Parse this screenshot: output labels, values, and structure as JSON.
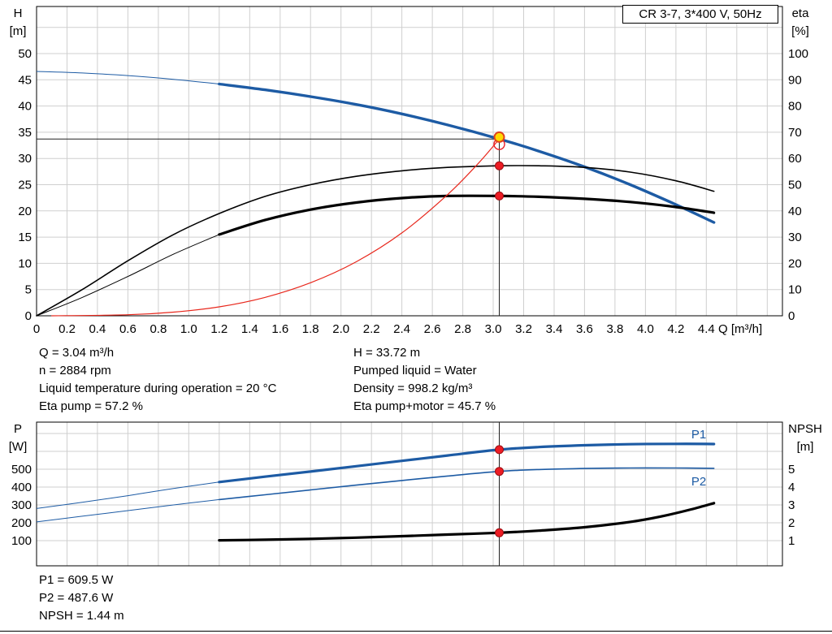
{
  "title_box": {
    "label": "CR 3-7, 3*400 V, 50Hz"
  },
  "axes": {
    "h_title": "H",
    "h_unit": "[m]",
    "eta_title": "eta",
    "eta_unit": "[%]",
    "q_title": "Q [m³/h]",
    "p_title": "P",
    "p_unit": "[W]",
    "npsh_title": "NPSH",
    "npsh_unit": "[m]"
  },
  "info_top": {
    "left": [
      "Q = 3.04 m³/h",
      "n = 2884 rpm",
      "Liquid temperature during operation = 20 °C",
      "Eta pump = 57.2 %"
    ],
    "right": [
      "H = 33.72 m",
      "Pumped liquid = Water",
      "Density = 998.2 kg/m³",
      "Eta pump+motor = 45.7 %"
    ]
  },
  "info_bottom": [
    "P1 = 609.5 W",
    "P2 = 487.6 W",
    "NPSH = 1.44 m"
  ],
  "chart_data": [
    {
      "type": "line",
      "title": "CR 3-7, 3*400 V, 50Hz",
      "xlabel": "Q [m³/h]",
      "ylabel_left": "H [m]",
      "ylabel_right": "eta [%]",
      "xlim": [
        0,
        4.9
      ],
      "ylim_left": [
        0,
        59
      ],
      "ylim_right": [
        0,
        118
      ],
      "grid": true,
      "x_ticks": [
        "0",
        "0.2",
        "0.4",
        "0.6",
        "0.8",
        "1.0",
        "1.2",
        "1.4",
        "1.6",
        "1.8",
        "2.0",
        "2.2",
        "2.4",
        "2.6",
        "2.8",
        "3.0",
        "3.2",
        "3.4",
        "3.6",
        "3.8",
        "4.0",
        "4.2",
        "4.4"
      ],
      "y_ticks_left": [
        "0",
        "5",
        "10",
        "15",
        "20",
        "25",
        "30",
        "35",
        "40",
        "45",
        "50"
      ],
      "y_ticks_right": [
        "0",
        "10",
        "20",
        "30",
        "40",
        "50",
        "60",
        "70",
        "80",
        "90",
        "100"
      ],
      "series": [
        {
          "name": "pump-head",
          "axis": "left",
          "color": "#1d5ba4",
          "width": 3.4,
          "thin_until": 1.2,
          "points": [
            [
              0,
              46.6
            ],
            [
              0.3,
              46.3
            ],
            [
              0.6,
              45.8
            ],
            [
              0.9,
              45.1
            ],
            [
              1.2,
              44.2
            ],
            [
              1.5,
              43.1
            ],
            [
              1.8,
              41.8
            ],
            [
              2.1,
              40.3
            ],
            [
              2.4,
              38.5
            ],
            [
              2.7,
              36.4
            ],
            [
              3.04,
              33.72
            ],
            [
              3.3,
              31.4
            ],
            [
              3.6,
              28.4
            ],
            [
              3.9,
              25.0
            ],
            [
              4.2,
              21.2
            ],
            [
              4.45,
              17.8
            ]
          ]
        },
        {
          "name": "eta-pump",
          "axis": "right",
          "color": "#000000",
          "width": 1.6,
          "points": [
            [
              0,
              0
            ],
            [
              0.3,
              10
            ],
            [
              0.6,
              21
            ],
            [
              0.9,
              31
            ],
            [
              1.2,
              39
            ],
            [
              1.5,
              45.5
            ],
            [
              1.8,
              50
            ],
            [
              2.1,
              53.2
            ],
            [
              2.4,
              55.3
            ],
            [
              2.7,
              56.6
            ],
            [
              3.04,
              57.2
            ],
            [
              3.3,
              57.2
            ],
            [
              3.6,
              56.6
            ],
            [
              3.9,
              54.8
            ],
            [
              4.2,
              51.5
            ],
            [
              4.45,
              47.5
            ]
          ]
        },
        {
          "name": "eta-pump-motor",
          "axis": "right",
          "color": "#000000",
          "width": 3.2,
          "thin_until": 1.2,
          "points": [
            [
              0,
              0
            ],
            [
              0.3,
              7
            ],
            [
              0.6,
              15
            ],
            [
              0.9,
              23.5
            ],
            [
              1.2,
              31
            ],
            [
              1.5,
              36.5
            ],
            [
              1.8,
              40.5
            ],
            [
              2.1,
              43.2
            ],
            [
              2.4,
              44.9
            ],
            [
              2.7,
              45.7
            ],
            [
              3.04,
              45.7
            ],
            [
              3.3,
              45.4
            ],
            [
              3.6,
              44.6
            ],
            [
              3.9,
              43.4
            ],
            [
              4.2,
              41.5
            ],
            [
              4.45,
              39.3
            ]
          ]
        },
        {
          "name": "system-curve",
          "axis": "left",
          "color": "#e8271c",
          "width": 1.2,
          "points": [
            [
              0.1,
              0
            ],
            [
              0.6,
              0.2
            ],
            [
              0.9,
              0.7
            ],
            [
              1.2,
              1.7
            ],
            [
              1.5,
              3.5
            ],
            [
              1.8,
              6.3
            ],
            [
              2.1,
              10.3
            ],
            [
              2.4,
              15.8
            ],
            [
              2.7,
              23.1
            ],
            [
              2.9,
              29.0
            ],
            [
              3.04,
              33.72
            ]
          ]
        }
      ],
      "duty_point": {
        "q": 3.04,
        "h": 33.72,
        "eta_pump": 57.2,
        "eta_pump_motor": 45.7
      }
    },
    {
      "type": "line",
      "xlabel": "Q [m³/h]",
      "ylabel_left": "P [W]",
      "ylabel_right": "NPSH [m]",
      "xlim": [
        0,
        4.9
      ],
      "ylim_left": [
        0,
        760
      ],
      "ylim_right": [
        0,
        7.6
      ],
      "grid": true,
      "y_ticks_left": [
        "100",
        "200",
        "300",
        "400",
        "500"
      ],
      "y_ticks_right": [
        "1",
        "2",
        "3",
        "4",
        "5"
      ],
      "series_labels": [
        "P1",
        "P2"
      ],
      "series": [
        {
          "name": "P1",
          "axis": "left",
          "color": "#1d5ba4",
          "width": 3.2,
          "thin_until": 1.2,
          "points": [
            [
              0,
              280
            ],
            [
              0.3,
              315
            ],
            [
              0.6,
              352
            ],
            [
              0.9,
              392
            ],
            [
              1.2,
              428
            ],
            [
              1.5,
              458
            ],
            [
              1.8,
              487
            ],
            [
              2.1,
              517
            ],
            [
              2.4,
              547
            ],
            [
              2.7,
              577
            ],
            [
              3.04,
              609.5
            ],
            [
              3.3,
              624
            ],
            [
              3.6,
              634
            ],
            [
              3.9,
              640
            ],
            [
              4.2,
              642
            ],
            [
              4.45,
              641
            ]
          ]
        },
        {
          "name": "P2",
          "axis": "left",
          "color": "#1d5ba4",
          "width": 1.6,
          "thin_until": 1.2,
          "points": [
            [
              0,
              205
            ],
            [
              0.3,
              237
            ],
            [
              0.6,
              268
            ],
            [
              0.9,
              300
            ],
            [
              1.2,
              330
            ],
            [
              1.5,
              357
            ],
            [
              1.8,
              384
            ],
            [
              2.1,
              411
            ],
            [
              2.4,
              437
            ],
            [
              2.7,
              462
            ],
            [
              3.04,
              487.6
            ],
            [
              3.3,
              498
            ],
            [
              3.6,
              504
            ],
            [
              3.9,
              507
            ],
            [
              4.2,
              507
            ],
            [
              4.45,
              505
            ]
          ]
        },
        {
          "name": "NPSH",
          "axis": "right",
          "color": "#000000",
          "width": 3.2,
          "points": [
            [
              1.2,
              1.02
            ],
            [
              1.5,
              1.05
            ],
            [
              1.8,
              1.1
            ],
            [
              2.1,
              1.17
            ],
            [
              2.4,
              1.25
            ],
            [
              2.7,
              1.34
            ],
            [
              3.04,
              1.44
            ],
            [
              3.3,
              1.56
            ],
            [
              3.6,
              1.75
            ],
            [
              3.9,
              2.05
            ],
            [
              4.1,
              2.35
            ],
            [
              4.3,
              2.75
            ],
            [
              4.45,
              3.1
            ]
          ]
        }
      ],
      "duty_point": {
        "q": 3.04,
        "p1": 609.5,
        "p2": 487.6,
        "npsh": 1.44
      }
    }
  ]
}
